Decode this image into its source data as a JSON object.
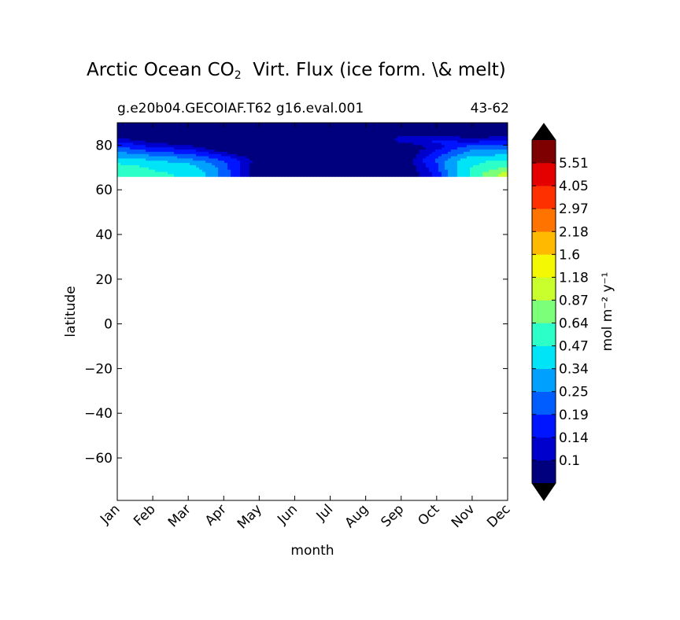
{
  "title": {
    "pre": "Arctic Ocean CO",
    "sub": "2",
    "post": "  Virt. Flux (ice form. \\& melt)"
  },
  "subtitle_left": "g.e20b04.GECOIAF.T62 g16.eval.001",
  "subtitle_right": "43-62",
  "colorbar": {
    "label": "mol m⁻² y⁻¹",
    "levels": [
      "0.1",
      "0.14",
      "0.19",
      "0.25",
      "0.34",
      "0.47",
      "0.64",
      "0.87",
      "1.18",
      "1.6",
      "2.18",
      "2.97",
      "4.05",
      "5.51"
    ],
    "colors": [
      "#00007f",
      "#0000cd",
      "#0015ff",
      "#005dff",
      "#00a0ff",
      "#00e4f7",
      "#2dffc9",
      "#7cff79",
      "#c9ff2d",
      "#f4f802",
      "#ffb900",
      "#ff7300",
      "#ff3000",
      "#e50000",
      "#7f0000"
    ],
    "extend_low_color": "#000000",
    "extend_high_color": "#000000"
  },
  "chart_data": {
    "type": "heatmap",
    "title": "Arctic Ocean CO2 Virt. Flux (ice form. \\& melt)",
    "xlabel": "month",
    "ylabel": "latitude",
    "x_categories": [
      "Jan",
      "Feb",
      "Mar",
      "Apr",
      "May",
      "Jun",
      "Jul",
      "Aug",
      "Sep",
      "Oct",
      "Nov",
      "Dec"
    ],
    "y_ticks": [
      80,
      60,
      40,
      20,
      0,
      -20,
      -40,
      -60
    ],
    "ylim": [
      -79,
      90
    ],
    "data_lat_range": [
      66,
      90
    ],
    "grid": false,
    "colorbar_position": "right",
    "latitudes": [
      90,
      86,
      82,
      79,
      76,
      73,
      70,
      67
    ],
    "values": [
      [
        0.05,
        0.05,
        0.05,
        0.05,
        0.05,
        0.05,
        0.05,
        0.05,
        0.05,
        0.05,
        0.05,
        0.05
      ],
      [
        0.05,
        0.05,
        0.05,
        0.05,
        0.05,
        0.05,
        0.05,
        0.05,
        0.08,
        0.05,
        0.05,
        0.05
      ],
      [
        0.12,
        0.08,
        0.05,
        0.05,
        0.05,
        0.05,
        0.05,
        0.05,
        0.12,
        0.15,
        0.12,
        0.14
      ],
      [
        0.2,
        0.14,
        0.12,
        0.05,
        0.05,
        0.05,
        0.05,
        0.05,
        0.05,
        0.12,
        0.22,
        0.23
      ],
      [
        0.28,
        0.22,
        0.19,
        0.12,
        0.05,
        0.05,
        0.05,
        0.05,
        0.05,
        0.16,
        0.3,
        0.32
      ],
      [
        0.4,
        0.35,
        0.28,
        0.19,
        0.08,
        0.05,
        0.05,
        0.05,
        0.05,
        0.2,
        0.42,
        0.5
      ],
      [
        0.55,
        0.45,
        0.4,
        0.21,
        0.06,
        0.05,
        0.05,
        0.05,
        0.05,
        0.17,
        0.48,
        0.65
      ],
      [
        0.6,
        0.5,
        0.45,
        0.22,
        0.06,
        0.05,
        0.05,
        0.05,
        0.05,
        0.15,
        0.5,
        1.0
      ]
    ]
  }
}
